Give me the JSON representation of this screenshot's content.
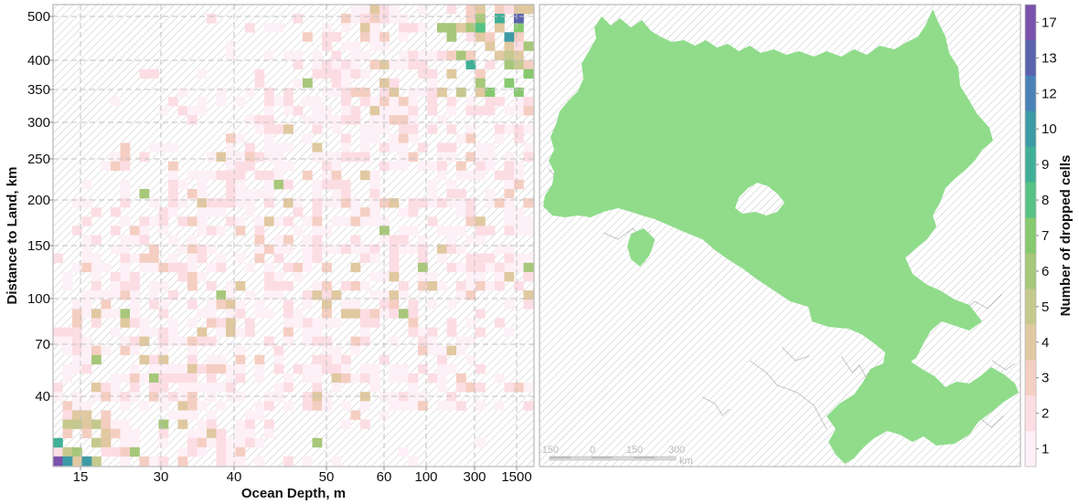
{
  "chart_data": [
    {
      "type": "heatmap",
      "title": "",
      "xlabel": "Ocean Depth, m",
      "ylabel": "Distance to Land, km",
      "x_tick_labels": [
        "15",
        "30",
        "40",
        "50",
        "60",
        "100",
        "300",
        "1500"
      ],
      "y_tick_labels": [
        "500",
        "400",
        "350",
        "300",
        "250",
        "200",
        "150",
        "100",
        "70",
        "40"
      ],
      "x_scale": "binned (non-uniform)",
      "y_scale": "binned (log-like)",
      "grid": true,
      "grid_style": "dashed",
      "value_meaning": "Number of dropped cells per depth/distance bin",
      "value_range": [
        1,
        17
      ],
      "most_common_value": 1,
      "max_value_location": "lowest depth bin, lowest distance bin (17)",
      "high_values_location": "deepest depth bins at greatest distance (300–1500 m, 400–500 km)",
      "empty_bins": "hatched background"
    },
    {
      "type": "map",
      "title": "",
      "description": "Spatial extent of dropped cells (single green filled region) over a hatched background map",
      "fill_color": "#90dc8b",
      "scalebar": {
        "labels": [
          "150",
          "0",
          "150",
          "300"
        ],
        "unit": "km"
      }
    }
  ],
  "colorbar": {
    "label": "Number of dropped cells",
    "tick_labels": [
      "17",
      "13",
      "12",
      "10",
      "9",
      "8",
      "7",
      "6",
      "5",
      "4",
      "3",
      "2",
      "1"
    ],
    "colors": [
      "#7b52ab",
      "#5a62ad",
      "#4a82b8",
      "#3d9ba5",
      "#3fb096",
      "#56c283",
      "#86c96e",
      "#a7c77a",
      "#c5c98e",
      "#e0c8a0",
      "#f5cec2",
      "#fcdde4",
      "#fdf0f6"
    ]
  }
}
